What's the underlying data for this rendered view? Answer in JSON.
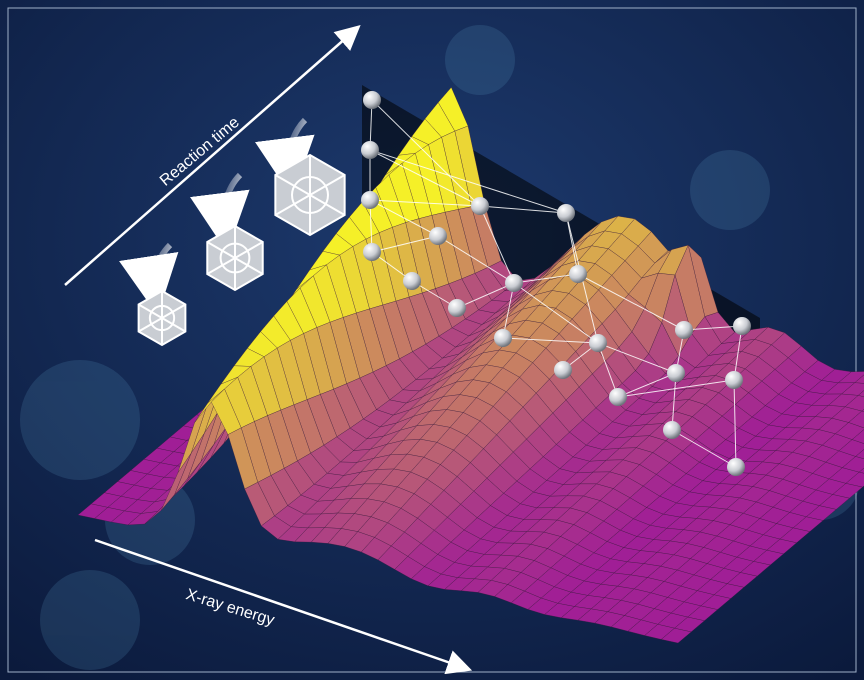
{
  "labels": {
    "time_axis": "Reaction time",
    "energy_axis": "X-ray energy"
  }
}
